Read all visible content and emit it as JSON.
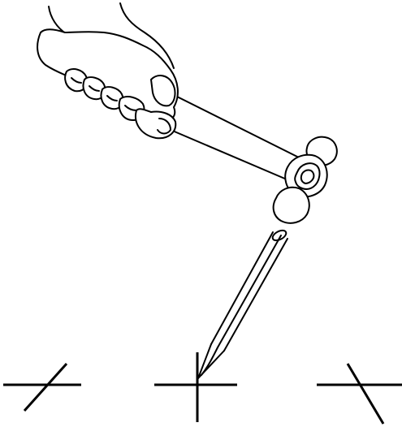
{
  "illustration": {
    "subject": "hand-holding-hammer-striking-punch-tool",
    "line_color": "#000000",
    "background_color": "#ffffff",
    "marks": [
      {
        "name": "cross-mark-left",
        "style": "slanted-cross"
      },
      {
        "name": "cross-mark-center",
        "style": "upright-cross"
      },
      {
        "name": "cross-mark-right",
        "style": "slanted-cross"
      }
    ]
  }
}
